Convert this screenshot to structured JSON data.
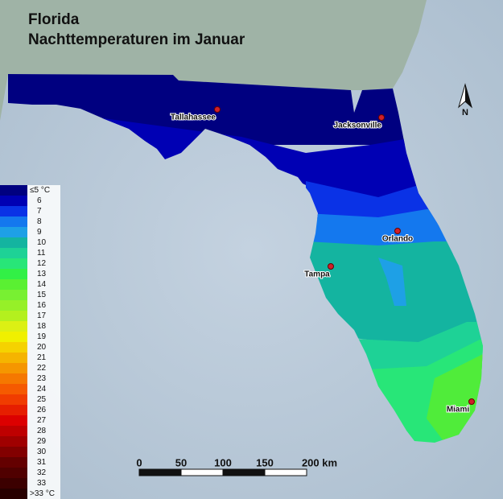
{
  "title": {
    "line1": "Florida",
    "line2": "Nachttemperaturen im Januar"
  },
  "cities": [
    {
      "label": "Tallahassee"
    },
    {
      "label": "Jacksonville"
    },
    {
      "label": "Orlando"
    },
    {
      "label": "Tampa"
    },
    {
      "label": "Miami"
    }
  ],
  "legend": {
    "labels": [
      "≤5 °C",
      "6",
      "7",
      "8",
      "9",
      "10",
      "11",
      "12",
      "13",
      "14",
      "15",
      "16",
      "17",
      "18",
      "19",
      "20",
      "21",
      "22",
      "23",
      "24",
      "25",
      "26",
      "27",
      "28",
      "29",
      "30",
      "31",
      "32",
      "33",
      ">33 °C"
    ],
    "colors": [
      "#000080",
      "#0000b4",
      "#0a32e6",
      "#1478ee",
      "#1ea0e6",
      "#14b4a0",
      "#1ed296",
      "#28e678",
      "#32f046",
      "#5af032",
      "#78f032",
      "#96f028",
      "#b4f01e",
      "#dcf014",
      "#f0f000",
      "#f5d200",
      "#f5b400",
      "#f59600",
      "#f57800",
      "#f55a00",
      "#f03c00",
      "#e61e00",
      "#dc0000",
      "#be0000",
      "#a00000",
      "#820000",
      "#640000",
      "#500000",
      "#3c0000",
      "#280000"
    ]
  },
  "scale": {
    "labels": [
      "0",
      "50",
      "100",
      "150",
      "200 km"
    ]
  },
  "north": "N"
}
